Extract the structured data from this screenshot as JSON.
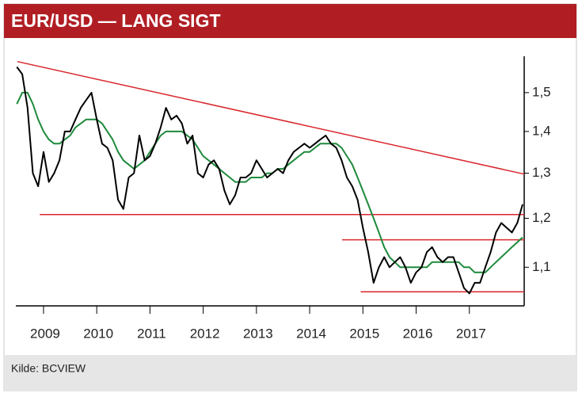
{
  "chart_data": {
    "type": "line",
    "title": "EUR/USD — LANG SIGT",
    "source": "Kilde: BCVIEW",
    "x": [
      2008.5,
      2008.6,
      2008.7,
      2008.8,
      2008.9,
      2009.0,
      2009.1,
      2009.2,
      2009.3,
      2009.4,
      2009.5,
      2009.6,
      2009.7,
      2009.8,
      2009.9,
      2010.0,
      2010.1,
      2010.2,
      2010.3,
      2010.4,
      2010.5,
      2010.6,
      2010.7,
      2010.8,
      2010.9,
      2011.0,
      2011.1,
      2011.2,
      2011.3,
      2011.4,
      2011.5,
      2011.6,
      2011.7,
      2011.8,
      2011.9,
      2012.0,
      2012.1,
      2012.2,
      2012.3,
      2012.4,
      2012.5,
      2012.6,
      2012.7,
      2012.8,
      2012.9,
      2013.0,
      2013.1,
      2013.2,
      2013.3,
      2013.4,
      2013.5,
      2013.6,
      2013.7,
      2013.8,
      2013.9,
      2014.0,
      2014.1,
      2014.2,
      2014.3,
      2014.4,
      2014.5,
      2014.6,
      2014.7,
      2014.8,
      2014.9,
      2015.0,
      2015.1,
      2015.2,
      2015.3,
      2015.4,
      2015.5,
      2015.6,
      2015.7,
      2015.8,
      2015.9,
      2016.0,
      2016.1,
      2016.2,
      2016.3,
      2016.4,
      2016.5,
      2016.6,
      2016.7,
      2016.8,
      2016.9,
      2017.0,
      2017.1,
      2017.2,
      2017.3,
      2017.4,
      2017.5,
      2017.6,
      2017.7,
      2017.8,
      2017.9,
      2018.0
    ],
    "series": [
      {
        "color": "#000000",
        "values": [
          1.57,
          1.55,
          1.46,
          1.3,
          1.27,
          1.35,
          1.28,
          1.3,
          1.33,
          1.4,
          1.4,
          1.43,
          1.46,
          1.48,
          1.5,
          1.43,
          1.37,
          1.36,
          1.33,
          1.24,
          1.22,
          1.29,
          1.3,
          1.39,
          1.33,
          1.34,
          1.37,
          1.41,
          1.46,
          1.43,
          1.44,
          1.42,
          1.37,
          1.39,
          1.3,
          1.29,
          1.32,
          1.33,
          1.31,
          1.26,
          1.23,
          1.25,
          1.29,
          1.29,
          1.3,
          1.33,
          1.31,
          1.29,
          1.3,
          1.31,
          1.3,
          1.33,
          1.35,
          1.36,
          1.37,
          1.36,
          1.37,
          1.38,
          1.39,
          1.37,
          1.36,
          1.33,
          1.29,
          1.27,
          1.24,
          1.18,
          1.13,
          1.07,
          1.1,
          1.12,
          1.1,
          1.11,
          1.12,
          1.1,
          1.07,
          1.09,
          1.1,
          1.13,
          1.14,
          1.12,
          1.11,
          1.12,
          1.12,
          1.09,
          1.06,
          1.05,
          1.07,
          1.07,
          1.1,
          1.13,
          1.17,
          1.19,
          1.18,
          1.17,
          1.19,
          1.23
        ]
      },
      {
        "color": "#1e8a3c",
        "values": [
          1.47,
          1.5,
          1.5,
          1.47,
          1.43,
          1.4,
          1.38,
          1.37,
          1.37,
          1.38,
          1.39,
          1.41,
          1.42,
          1.43,
          1.43,
          1.43,
          1.42,
          1.4,
          1.38,
          1.35,
          1.33,
          1.32,
          1.31,
          1.32,
          1.33,
          1.35,
          1.37,
          1.39,
          1.4,
          1.4,
          1.4,
          1.4,
          1.39,
          1.38,
          1.36,
          1.34,
          1.33,
          1.32,
          1.31,
          1.3,
          1.29,
          1.28,
          1.28,
          1.28,
          1.29,
          1.29,
          1.29,
          1.3,
          1.3,
          1.31,
          1.31,
          1.32,
          1.33,
          1.34,
          1.35,
          1.35,
          1.36,
          1.37,
          1.37,
          1.37,
          1.37,
          1.36,
          1.34,
          1.32,
          1.29,
          1.26,
          1.23,
          1.2,
          1.17,
          1.14,
          1.12,
          1.11,
          1.1,
          1.1,
          1.1,
          1.1,
          1.1,
          1.1,
          1.11,
          1.11,
          1.11,
          1.11,
          1.11,
          1.11,
          1.1,
          1.1,
          1.09,
          1.09,
          1.09,
          1.1,
          1.11,
          1.12,
          1.13,
          1.14,
          1.15,
          1.16
        ]
      }
    ],
    "lines": [
      {
        "color": "#d9262c",
        "x": [
          2008.51,
          2018.03
        ],
        "values": [
          1.585,
          1.298
        ]
      },
      {
        "color": "#d9262c",
        "x": [
          2008.93,
          2018.03
        ],
        "values": [
          1.208,
          1.208
        ]
      },
      {
        "color": "#d9262c",
        "x": [
          2014.61,
          2018.03
        ],
        "values": [
          1.155,
          1.155
        ]
      },
      {
        "color": "#d9262c",
        "x": [
          2014.96,
          2018.03
        ],
        "values": [
          1.053,
          1.053
        ]
      }
    ],
    "xlim": [
      2008.48,
      2018.03
    ],
    "xticks": [
      2009,
      2010,
      2011,
      2012,
      2013,
      2014,
      2015,
      2016,
      2017
    ],
    "ylim": [
      1.03,
      1.6
    ],
    "log_y": true,
    "yticks": [
      {
        "value": 1.1,
        "label": "1,1"
      },
      {
        "value": 1.2,
        "label": "1,2"
      },
      {
        "value": 1.3,
        "label": "1,3"
      },
      {
        "value": 1.4,
        "label": "1,4"
      },
      {
        "value": 1.5,
        "label": "1,5"
      }
    ]
  }
}
